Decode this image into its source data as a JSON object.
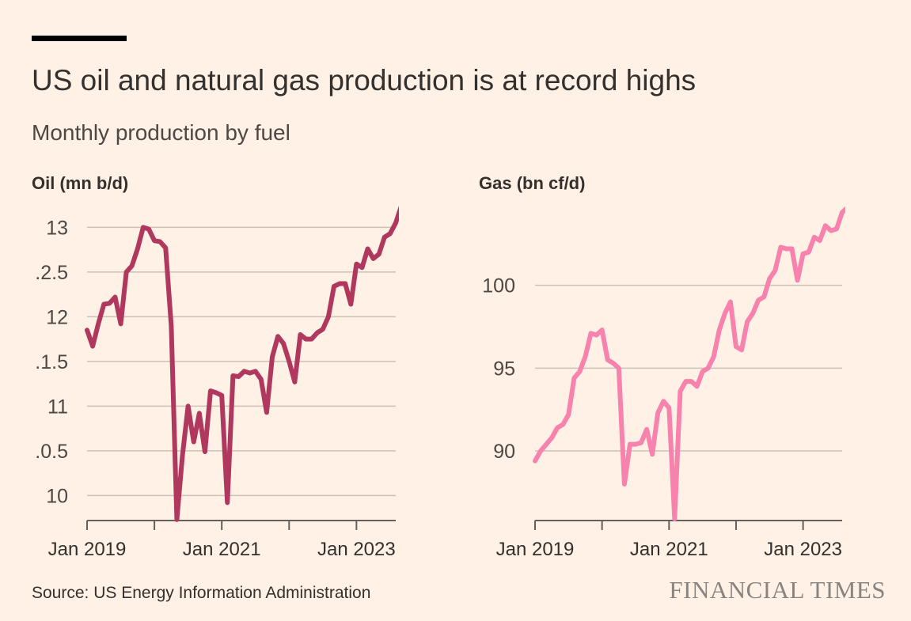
{
  "header": {
    "title": "US oil and natural gas production is at record highs",
    "subtitle": "Monthly production by fuel"
  },
  "footer": {
    "source": "Source: US Energy Information Administration",
    "brand": "FINANCIAL TIMES"
  },
  "colors": {
    "background": "#fff1e5",
    "oil_line": "#b0385e",
    "gas_line": "#f882ae",
    "grid": "#ccc1b7",
    "axis": "#66605c"
  },
  "chart_data": [
    {
      "type": "line",
      "title": "Oil (mn b/d)",
      "ylabel": "Oil (mn b/d)",
      "xlabel": "",
      "ylim": [
        9.72,
        13.26
      ],
      "yticks": [
        10,
        10.5,
        11,
        11.5,
        12,
        12.5,
        13
      ],
      "ytick_labels": [
        "10",
        ".0.5",
        "11",
        ".1.5",
        "12",
        ".2.5",
        "13"
      ],
      "xlim": [
        "2019-01",
        "2023-08"
      ],
      "xticks": [
        "2019-01",
        "2020-01",
        "2021-01",
        "2022-01",
        "2023-01"
      ],
      "xtick_labels": [
        "Jan 2019",
        "",
        "Jan 2021",
        "",
        "Jan 2023"
      ],
      "series": [
        {
          "name": "Oil",
          "color": "#b0385e",
          "points": [
            [
              "2019-01",
              11.85
            ],
            [
              "2019-02",
              11.67
            ],
            [
              "2019-03",
              11.92
            ],
            [
              "2019-04",
              12.14
            ],
            [
              "2019-05",
              12.15
            ],
            [
              "2019-06",
              12.22
            ],
            [
              "2019-07",
              11.92
            ],
            [
              "2019-08",
              12.5
            ],
            [
              "2019-09",
              12.57
            ],
            [
              "2019-10",
              12.76
            ],
            [
              "2019-11",
              13.0
            ],
            [
              "2019-12",
              12.98
            ],
            [
              "2020-01",
              12.85
            ],
            [
              "2020-02",
              12.84
            ],
            [
              "2020-03",
              12.77
            ],
            [
              "2020-04",
              11.9
            ],
            [
              "2020-05",
              9.73
            ],
            [
              "2020-06",
              10.45
            ],
            [
              "2020-07",
              11.0
            ],
            [
              "2020-08",
              10.6
            ],
            [
              "2020-09",
              10.92
            ],
            [
              "2020-10",
              10.49
            ],
            [
              "2020-11",
              11.17
            ],
            [
              "2020-12",
              11.15
            ],
            [
              "2021-01",
              11.12
            ],
            [
              "2021-02",
              9.92
            ],
            [
              "2021-03",
              11.34
            ],
            [
              "2021-04",
              11.33
            ],
            [
              "2021-05",
              11.39
            ],
            [
              "2021-06",
              11.37
            ],
            [
              "2021-07",
              11.39
            ],
            [
              "2021-08",
              11.3
            ],
            [
              "2021-09",
              10.93
            ],
            [
              "2021-10",
              11.55
            ],
            [
              "2021-11",
              11.78
            ],
            [
              "2021-12",
              11.7
            ],
            [
              "2022-01",
              11.5
            ],
            [
              "2022-02",
              11.27
            ],
            [
              "2022-03",
              11.8
            ],
            [
              "2022-04",
              11.75
            ],
            [
              "2022-05",
              11.75
            ],
            [
              "2022-06",
              11.82
            ],
            [
              "2022-07",
              11.86
            ],
            [
              "2022-08",
              12.0
            ],
            [
              "2022-09",
              12.34
            ],
            [
              "2022-10",
              12.37
            ],
            [
              "2022-11",
              12.37
            ],
            [
              "2022-12",
              12.14
            ],
            [
              "2023-01",
              12.59
            ],
            [
              "2023-02",
              12.55
            ],
            [
              "2023-03",
              12.76
            ],
            [
              "2023-04",
              12.65
            ],
            [
              "2023-05",
              12.7
            ],
            [
              "2023-06",
              12.89
            ],
            [
              "2023-07",
              12.93
            ],
            [
              "2023-08",
              13.05
            ],
            [
              "2023-09",
              13.24
            ]
          ]
        }
      ]
    },
    {
      "type": "line",
      "title": "Gas (bn cf/d)",
      "ylabel": "Gas (bn cf/d)",
      "xlabel": "",
      "ylim": [
        85.8,
        104.9
      ],
      "yticks": [
        90,
        95,
        100
      ],
      "ytick_labels": [
        "90",
        "95",
        "100"
      ],
      "xlim": [
        "2019-01",
        "2023-08"
      ],
      "xticks": [
        "2019-01",
        "2020-01",
        "2021-01",
        "2022-01",
        "2023-01"
      ],
      "xtick_labels": [
        "Jan 2019",
        "",
        "Jan 2021",
        "",
        "Jan 2023"
      ],
      "series": [
        {
          "name": "Gas",
          "color": "#f882ae",
          "points": [
            [
              "2019-01",
              89.4
            ],
            [
              "2019-02",
              90.0
            ],
            [
              "2019-03",
              90.4
            ],
            [
              "2019-04",
              90.8
            ],
            [
              "2019-05",
              91.4
            ],
            [
              "2019-06",
              91.6
            ],
            [
              "2019-07",
              92.2
            ],
            [
              "2019-08",
              94.4
            ],
            [
              "2019-09",
              94.8
            ],
            [
              "2019-10",
              95.7
            ],
            [
              "2019-11",
              97.1
            ],
            [
              "2019-12",
              97.0
            ],
            [
              "2020-01",
              97.3
            ],
            [
              "2020-02",
              95.5
            ],
            [
              "2020-03",
              95.3
            ],
            [
              "2020-04",
              95.0
            ],
            [
              "2020-05",
              88.0
            ],
            [
              "2020-06",
              90.4
            ],
            [
              "2020-07",
              90.4
            ],
            [
              "2020-08",
              90.5
            ],
            [
              "2020-09",
              91.3
            ],
            [
              "2020-10",
              89.8
            ],
            [
              "2020-11",
              92.3
            ],
            [
              "2020-12",
              93.0
            ],
            [
              "2021-01",
              92.6
            ],
            [
              "2021-02",
              85.9
            ],
            [
              "2021-03",
              93.6
            ],
            [
              "2021-04",
              94.2
            ],
            [
              "2021-05",
              94.2
            ],
            [
              "2021-06",
              93.9
            ],
            [
              "2021-07",
              94.8
            ],
            [
              "2021-08",
              95.0
            ],
            [
              "2021-09",
              95.7
            ],
            [
              "2021-10",
              97.3
            ],
            [
              "2021-11",
              98.3
            ],
            [
              "2021-12",
              99.0
            ],
            [
              "2022-01",
              96.3
            ],
            [
              "2022-02",
              96.1
            ],
            [
              "2022-03",
              97.8
            ],
            [
              "2022-04",
              98.3
            ],
            [
              "2022-05",
              99.1
            ],
            [
              "2022-06",
              99.3
            ],
            [
              "2022-07",
              100.4
            ],
            [
              "2022-08",
              100.9
            ],
            [
              "2022-09",
              102.3
            ],
            [
              "2022-10",
              102.2
            ],
            [
              "2022-11",
              102.2
            ],
            [
              "2022-12",
              100.3
            ],
            [
              "2023-01",
              101.9
            ],
            [
              "2023-02",
              102.0
            ],
            [
              "2023-03",
              102.9
            ],
            [
              "2023-04",
              102.7
            ],
            [
              "2023-05",
              103.6
            ],
            [
              "2023-06",
              103.3
            ],
            [
              "2023-07",
              103.4
            ],
            [
              "2023-08",
              104.4
            ],
            [
              "2023-09",
              104.7
            ]
          ]
        }
      ]
    }
  ]
}
